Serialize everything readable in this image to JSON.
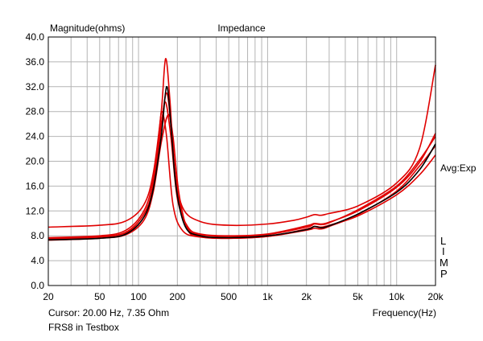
{
  "chart_data": {
    "type": "line",
    "title": "Impedance",
    "ylabel": "Magnitude(ohms)",
    "xlabel": "Frequency(Hz)",
    "x_scale": "log",
    "xlim": [
      20,
      20000
    ],
    "ylim": [
      0,
      40
    ],
    "y_ticks": [
      "0.0",
      "4.0",
      "8.0",
      "12.0",
      "16.0",
      "20.0",
      "24.0",
      "28.0",
      "32.0",
      "36.0",
      "40.0"
    ],
    "x_ticks": [
      {
        "value": 20,
        "label": "20"
      },
      {
        "value": 50,
        "label": "50"
      },
      {
        "value": 100,
        "label": "100"
      },
      {
        "value": 200,
        "label": "200"
      },
      {
        "value": 500,
        "label": "500"
      },
      {
        "value": 1000,
        "label": "1k"
      },
      {
        "value": 2000,
        "label": "2k"
      },
      {
        "value": 5000,
        "label": "5k"
      },
      {
        "value": 10000,
        "label": "10k"
      },
      {
        "value": 20000,
        "label": "20k"
      }
    ],
    "grid": true,
    "right_labels": {
      "avg": "Avg:Exp",
      "limp": [
        "L",
        "I",
        "M",
        "P"
      ]
    },
    "cursor_text": "Cursor: 20.00 Hz, 7.35 Ohm",
    "footer": "FRS8 in Testbox",
    "colors": {
      "red": "#e00000",
      "black": "#000000",
      "grid": "#b4b4b4"
    },
    "series": [
      {
        "color": "#e00000",
        "points": [
          [
            20,
            9.4
          ],
          [
            50,
            9.7
          ],
          [
            80,
            10.4
          ],
          [
            110,
            13
          ],
          [
            130,
            18
          ],
          [
            150,
            28
          ],
          [
            162,
            36.5
          ],
          [
            175,
            30
          ],
          [
            190,
            19
          ],
          [
            220,
            12.5
          ],
          [
            300,
            10.3
          ],
          [
            500,
            9.7
          ],
          [
            1000,
            9.9
          ],
          [
            1600,
            10.5
          ],
          [
            2000,
            11.0
          ],
          [
            2300,
            11.4
          ],
          [
            2600,
            11.3
          ],
          [
            3000,
            11.6
          ],
          [
            5000,
            12.8
          ],
          [
            10000,
            16.5
          ],
          [
            15000,
            22.0
          ],
          [
            20000,
            35.5
          ]
        ]
      },
      {
        "color": "#e00000",
        "points": [
          [
            20,
            7.7
          ],
          [
            50,
            8.0
          ],
          [
            80,
            8.9
          ],
          [
            110,
            12
          ],
          [
            130,
            17
          ],
          [
            150,
            26
          ],
          [
            162,
            29.5
          ],
          [
            178,
            24
          ],
          [
            200,
            14
          ],
          [
            240,
            9.5
          ],
          [
            300,
            8.3
          ],
          [
            500,
            8.0
          ],
          [
            1000,
            8.3
          ],
          [
            2000,
            9.6
          ],
          [
            2300,
            10.0
          ],
          [
            2600,
            9.9
          ],
          [
            3000,
            10.2
          ],
          [
            5000,
            12.0
          ],
          [
            10000,
            15.8
          ],
          [
            15000,
            19.8
          ],
          [
            20000,
            24.5
          ]
        ]
      },
      {
        "color": "#e00000",
        "points": [
          [
            20,
            7.5
          ],
          [
            50,
            7.8
          ],
          [
            80,
            8.5
          ],
          [
            110,
            11
          ],
          [
            130,
            16
          ],
          [
            145,
            25
          ],
          [
            152,
            28
          ],
          [
            165,
            24
          ],
          [
            185,
            13
          ],
          [
            220,
            8.8
          ],
          [
            300,
            7.8
          ],
          [
            500,
            7.6
          ],
          [
            1000,
            7.9
          ],
          [
            2000,
            9.1
          ],
          [
            2300,
            9.5
          ],
          [
            2600,
            9.4
          ],
          [
            3000,
            9.7
          ],
          [
            5000,
            11.2
          ],
          [
            10000,
            14.6
          ],
          [
            15000,
            17.8
          ],
          [
            20000,
            21.0
          ]
        ]
      },
      {
        "color": "#e00000",
        "points": [
          [
            20,
            7.6
          ],
          [
            50,
            7.9
          ],
          [
            80,
            8.6
          ],
          [
            110,
            11.5
          ],
          [
            130,
            16
          ],
          [
            150,
            25.5
          ],
          [
            165,
            31
          ],
          [
            180,
            25
          ],
          [
            200,
            15
          ],
          [
            240,
            9.3
          ],
          [
            300,
            8.2
          ],
          [
            500,
            7.9
          ],
          [
            1000,
            8.2
          ],
          [
            2000,
            9.4
          ],
          [
            2300,
            9.9
          ],
          [
            2600,
            9.8
          ],
          [
            3000,
            10.1
          ],
          [
            5000,
            12.2
          ],
          [
            10000,
            16.0
          ],
          [
            15000,
            20.2
          ],
          [
            20000,
            24.0
          ]
        ]
      },
      {
        "color": "#e00000",
        "points": [
          [
            20,
            7.3
          ],
          [
            50,
            7.6
          ],
          [
            80,
            8.2
          ],
          [
            110,
            10.5
          ],
          [
            130,
            15
          ],
          [
            150,
            23
          ],
          [
            170,
            27.5
          ],
          [
            185,
            24
          ],
          [
            205,
            15
          ],
          [
            240,
            9.0
          ],
          [
            300,
            7.9
          ],
          [
            500,
            7.6
          ],
          [
            1000,
            7.9
          ],
          [
            2000,
            8.9
          ],
          [
            2300,
            9.2
          ],
          [
            2600,
            9.1
          ],
          [
            3000,
            9.5
          ],
          [
            5000,
            11.4
          ],
          [
            10000,
            15.2
          ],
          [
            15000,
            19.2
          ],
          [
            20000,
            22.5
          ]
        ]
      },
      {
        "color": "#000000",
        "points": [
          [
            20,
            7.35
          ],
          [
            50,
            7.6
          ],
          [
            80,
            8.3
          ],
          [
            110,
            11
          ],
          [
            130,
            15.5
          ],
          [
            150,
            24
          ],
          [
            165,
            32
          ],
          [
            178,
            26
          ],
          [
            195,
            16
          ],
          [
            230,
            9.5
          ],
          [
            300,
            8.0
          ],
          [
            500,
            7.7
          ],
          [
            1000,
            8.0
          ],
          [
            2000,
            9.0
          ],
          [
            2300,
            9.5
          ],
          [
            2600,
            9.3
          ],
          [
            3000,
            9.6
          ],
          [
            5000,
            11.5
          ],
          [
            10000,
            15.0
          ],
          [
            15000,
            18.6
          ],
          [
            20000,
            22.8
          ]
        ]
      }
    ]
  }
}
